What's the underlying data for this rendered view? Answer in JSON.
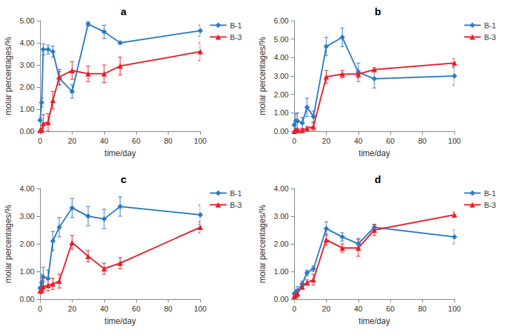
{
  "chart_data": [
    {
      "type": "line",
      "title": "a",
      "x_label": "time/day",
      "y_label": "molar percentages/%",
      "x": [
        0,
        1,
        2,
        5,
        8,
        12,
        20,
        30,
        40,
        50,
        100
      ],
      "xlim": [
        0,
        100
      ],
      "xticks": [
        0,
        20,
        40,
        60,
        80,
        100
      ],
      "ylim": [
        0,
        5
      ],
      "yticks": [
        {
          "value": 0,
          "label": "0.00"
        },
        {
          "value": 1,
          "label": "1.00"
        },
        {
          "value": 2,
          "label": "2.00"
        },
        {
          "value": 3,
          "label": "3.00"
        },
        {
          "value": 4,
          "label": "4.00"
        },
        {
          "value": 5,
          "label": "5.00"
        }
      ],
      "grid": false,
      "legend": "top-right",
      "series": [
        {
          "name": "B-1",
          "color": "#2e7bc4",
          "marker": "diamond",
          "values": [
            0.5,
            1.3,
            3.7,
            3.7,
            3.6,
            2.4,
            1.8,
            4.85,
            4.5,
            4.0,
            4.55
          ],
          "errors": [
            0.1,
            0.2,
            0.25,
            0.2,
            0.25,
            0.3,
            0.3,
            0.1,
            0.3,
            0.05,
            0.25
          ]
        },
        {
          "name": "B-3",
          "color": "#e8202a",
          "marker": "triangle",
          "values": [
            0.05,
            0.05,
            0.35,
            0.4,
            1.4,
            2.45,
            2.75,
            2.6,
            2.6,
            2.95,
            3.6
          ],
          "errors": [
            0.05,
            0.1,
            0.4,
            0.4,
            0.4,
            0.35,
            0.4,
            0.35,
            0.4,
            0.4,
            0.4
          ]
        }
      ]
    },
    {
      "type": "line",
      "title": "b",
      "x_label": "time/day",
      "y_label": "molar percentages/%",
      "x": [
        0,
        1,
        2,
        5,
        8,
        12,
        20,
        30,
        40,
        50,
        100
      ],
      "xlim": [
        0,
        100
      ],
      "xticks": [
        0,
        20,
        40,
        60,
        80,
        100
      ],
      "ylim": [
        0,
        6
      ],
      "yticks": [
        {
          "value": 0,
          "label": "0.00"
        },
        {
          "value": 1,
          "label": "1.00"
        },
        {
          "value": 2,
          "label": "2.00"
        },
        {
          "value": 3,
          "label": "3.00"
        },
        {
          "value": 4,
          "label": "4.00"
        },
        {
          "value": 5,
          "label": "5.00"
        },
        {
          "value": 6,
          "label": "6.00"
        }
      ],
      "grid": false,
      "legend": "top-right",
      "series": [
        {
          "name": "B-1",
          "color": "#2e7bc4",
          "marker": "diamond",
          "values": [
            0.35,
            0.55,
            0.55,
            0.45,
            1.3,
            0.8,
            4.6,
            5.1,
            3.2,
            2.85,
            3.0
          ],
          "errors": [
            0.2,
            0.4,
            0.45,
            0.3,
            0.5,
            0.3,
            0.5,
            0.5,
            0.5,
            0.5,
            0.5
          ]
        },
        {
          "name": "B-3",
          "color": "#e8202a",
          "marker": "triangle",
          "values": [
            0,
            0.05,
            0.05,
            0.05,
            0.15,
            0.25,
            2.95,
            3.1,
            3.1,
            3.35,
            3.7
          ],
          "errors": [
            0.05,
            0.1,
            0.1,
            0.1,
            0.1,
            0.2,
            0.35,
            0.2,
            0.2,
            0.1,
            0.25
          ]
        }
      ]
    },
    {
      "type": "line",
      "title": "c",
      "x_label": "time/day",
      "y_label": "molar percentages/%",
      "x": [
        0,
        1,
        2,
        5,
        8,
        12,
        20,
        30,
        40,
        50,
        100
      ],
      "xlim": [
        0,
        100
      ],
      "xticks": [
        0,
        20,
        40,
        60,
        80,
        100
      ],
      "ylim": [
        0,
        4
      ],
      "yticks": [
        {
          "value": 0,
          "label": "0.00"
        },
        {
          "value": 1,
          "label": "1.00"
        },
        {
          "value": 2,
          "label": "2.00"
        },
        {
          "value": 3,
          "label": "3.00"
        },
        {
          "value": 4,
          "label": "4.00"
        }
      ],
      "grid": false,
      "legend": "top-right",
      "series": [
        {
          "name": "B-1",
          "color": "#2e7bc4",
          "marker": "diamond",
          "values": [
            0.4,
            0.6,
            0.8,
            0.75,
            2.1,
            2.6,
            3.3,
            3.0,
            2.9,
            3.35,
            3.05
          ],
          "errors": [
            0.2,
            0.3,
            0.35,
            0.3,
            0.35,
            0.35,
            0.35,
            0.35,
            0.35,
            0.35,
            0.35
          ]
        },
        {
          "name": "B-3",
          "color": "#e8202a",
          "marker": "triangle",
          "values": [
            0.3,
            0.35,
            0.45,
            0.5,
            0.55,
            0.65,
            2.05,
            1.55,
            1.1,
            1.3,
            2.6
          ],
          "errors": [
            0.1,
            0.15,
            0.2,
            0.2,
            0.2,
            0.25,
            0.25,
            0.2,
            0.2,
            0.2,
            0.2
          ]
        }
      ]
    },
    {
      "type": "line",
      "title": "d",
      "x_label": "time/day",
      "y_label": "molar percentages/%",
      "x": [
        0,
        1,
        2,
        5,
        8,
        12,
        20,
        30,
        40,
        50,
        100
      ],
      "xlim": [
        0,
        100
      ],
      "xticks": [
        0,
        20,
        40,
        60,
        80,
        100
      ],
      "ylim": [
        0,
        4
      ],
      "yticks": [
        {
          "value": 0,
          "label": "0.00"
        },
        {
          "value": 1,
          "label": "1.00"
        },
        {
          "value": 2,
          "label": "2.00"
        },
        {
          "value": 3,
          "label": "3.00"
        },
        {
          "value": 4,
          "label": "4.00"
        }
      ],
      "grid": false,
      "legend": "top-right",
      "series": [
        {
          "name": "B-1",
          "color": "#2e7bc4",
          "marker": "diamond",
          "values": [
            0.2,
            0.25,
            0.3,
            0.55,
            0.95,
            1.1,
            2.55,
            2.25,
            2.0,
            2.6,
            2.25
          ],
          "errors": [
            0.05,
            0.1,
            0.15,
            0.1,
            0.1,
            0.1,
            0.25,
            0.15,
            0.2,
            0.1,
            0.25
          ]
        },
        {
          "name": "B-3",
          "color": "#e8202a",
          "marker": "triangle",
          "values": [
            0.1,
            0.15,
            0.2,
            0.45,
            0.6,
            0.7,
            2.15,
            1.85,
            1.85,
            2.5,
            3.05
          ],
          "errors": [
            0.05,
            0.1,
            0.1,
            0.1,
            0.1,
            0.2,
            0.2,
            0.15,
            0.3,
            0.2,
            0.1
          ]
        }
      ]
    }
  ]
}
